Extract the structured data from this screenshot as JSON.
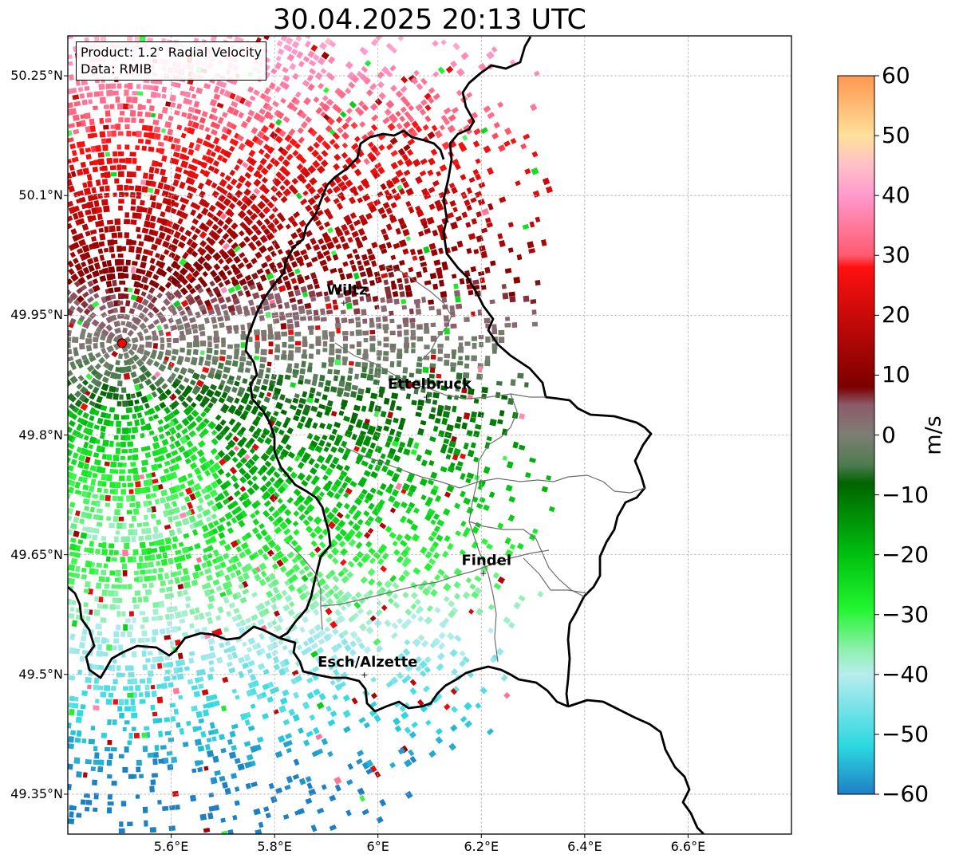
{
  "title": "30.04.2025 20:13 UTC",
  "info_box": {
    "product": "Product: 1.2° Radial Velocity",
    "source": "Data: RMIB"
  },
  "map": {
    "lon_range": [
      5.4,
      6.8
    ],
    "lat_range": [
      49.3,
      50.3
    ],
    "lat_ticks": [
      {
        "value": 50.25,
        "label": "50.25°N"
      },
      {
        "value": 50.1,
        "label": "50.1°N"
      },
      {
        "value": 49.95,
        "label": "49.95°N"
      },
      {
        "value": 49.8,
        "label": "49.8°N"
      },
      {
        "value": 49.65,
        "label": "49.65°N"
      },
      {
        "value": 49.5,
        "label": "49.5°N"
      },
      {
        "value": 49.35,
        "label": "49.35°N"
      }
    ],
    "lon_ticks": [
      {
        "value": 5.6,
        "label": "5.6°E"
      },
      {
        "value": 5.8,
        "label": "5.8°E"
      },
      {
        "value": 6.0,
        "label": "6°E"
      },
      {
        "value": 6.2,
        "label": "6.2°E"
      },
      {
        "value": 6.4,
        "label": "6.4°E"
      },
      {
        "value": 6.6,
        "label": "6.6°E"
      }
    ],
    "radar_site": {
      "lon": 5.505,
      "lat": 49.915,
      "color": "#ff0000"
    },
    "cities": [
      {
        "name": "Wiltz",
        "lon": 5.94,
        "lat": 49.966
      },
      {
        "name": "Ettelbruck",
        "lon": 6.1,
        "lat": 49.848
      },
      {
        "name": "Findel",
        "lon": 6.21,
        "lat": 49.627
      },
      {
        "name": "Esch/Alzette",
        "lon": 5.98,
        "lat": 49.5
      }
    ],
    "grid": true
  },
  "colorbar": {
    "label": "m/s",
    "min": -60,
    "max": 60,
    "ticks": [
      {
        "value": 60,
        "label": "60"
      },
      {
        "value": 50,
        "label": "50"
      },
      {
        "value": 40,
        "label": "40"
      },
      {
        "value": 30,
        "label": "30"
      },
      {
        "value": 20,
        "label": "20"
      },
      {
        "value": 10,
        "label": "10"
      },
      {
        "value": 0,
        "label": "0"
      },
      {
        "value": -10,
        "label": "−10"
      },
      {
        "value": -20,
        "label": "−20"
      },
      {
        "value": -30,
        "label": "−30"
      },
      {
        "value": -40,
        "label": "−40"
      },
      {
        "value": -50,
        "label": "−50"
      },
      {
        "value": -60,
        "label": "−60"
      }
    ],
    "stops": [
      {
        "value": -60,
        "color": "#1f7fc4"
      },
      {
        "value": -52,
        "color": "#2bd8e0"
      },
      {
        "value": -40,
        "color": "#b8ecee"
      },
      {
        "value": -36,
        "color": "#90f0b0"
      },
      {
        "value": -29,
        "color": "#22f530"
      },
      {
        "value": -20,
        "color": "#00c010"
      },
      {
        "value": -8,
        "color": "#006400"
      },
      {
        "value": -5,
        "color": "#4e7b50"
      },
      {
        "value": 0,
        "color": "#7e7e74"
      },
      {
        "value": 5,
        "color": "#8c5c6c"
      },
      {
        "value": 8,
        "color": "#7c0000"
      },
      {
        "value": 28,
        "color": "#ff1010"
      },
      {
        "value": 30,
        "color": "#ff5a70"
      },
      {
        "value": 40,
        "color": "#ff99cc"
      },
      {
        "value": 45,
        "color": "#ffc0c8"
      },
      {
        "value": 50,
        "color": "#ffe09a"
      },
      {
        "value": 60,
        "color": "#ff9650"
      }
    ]
  }
}
